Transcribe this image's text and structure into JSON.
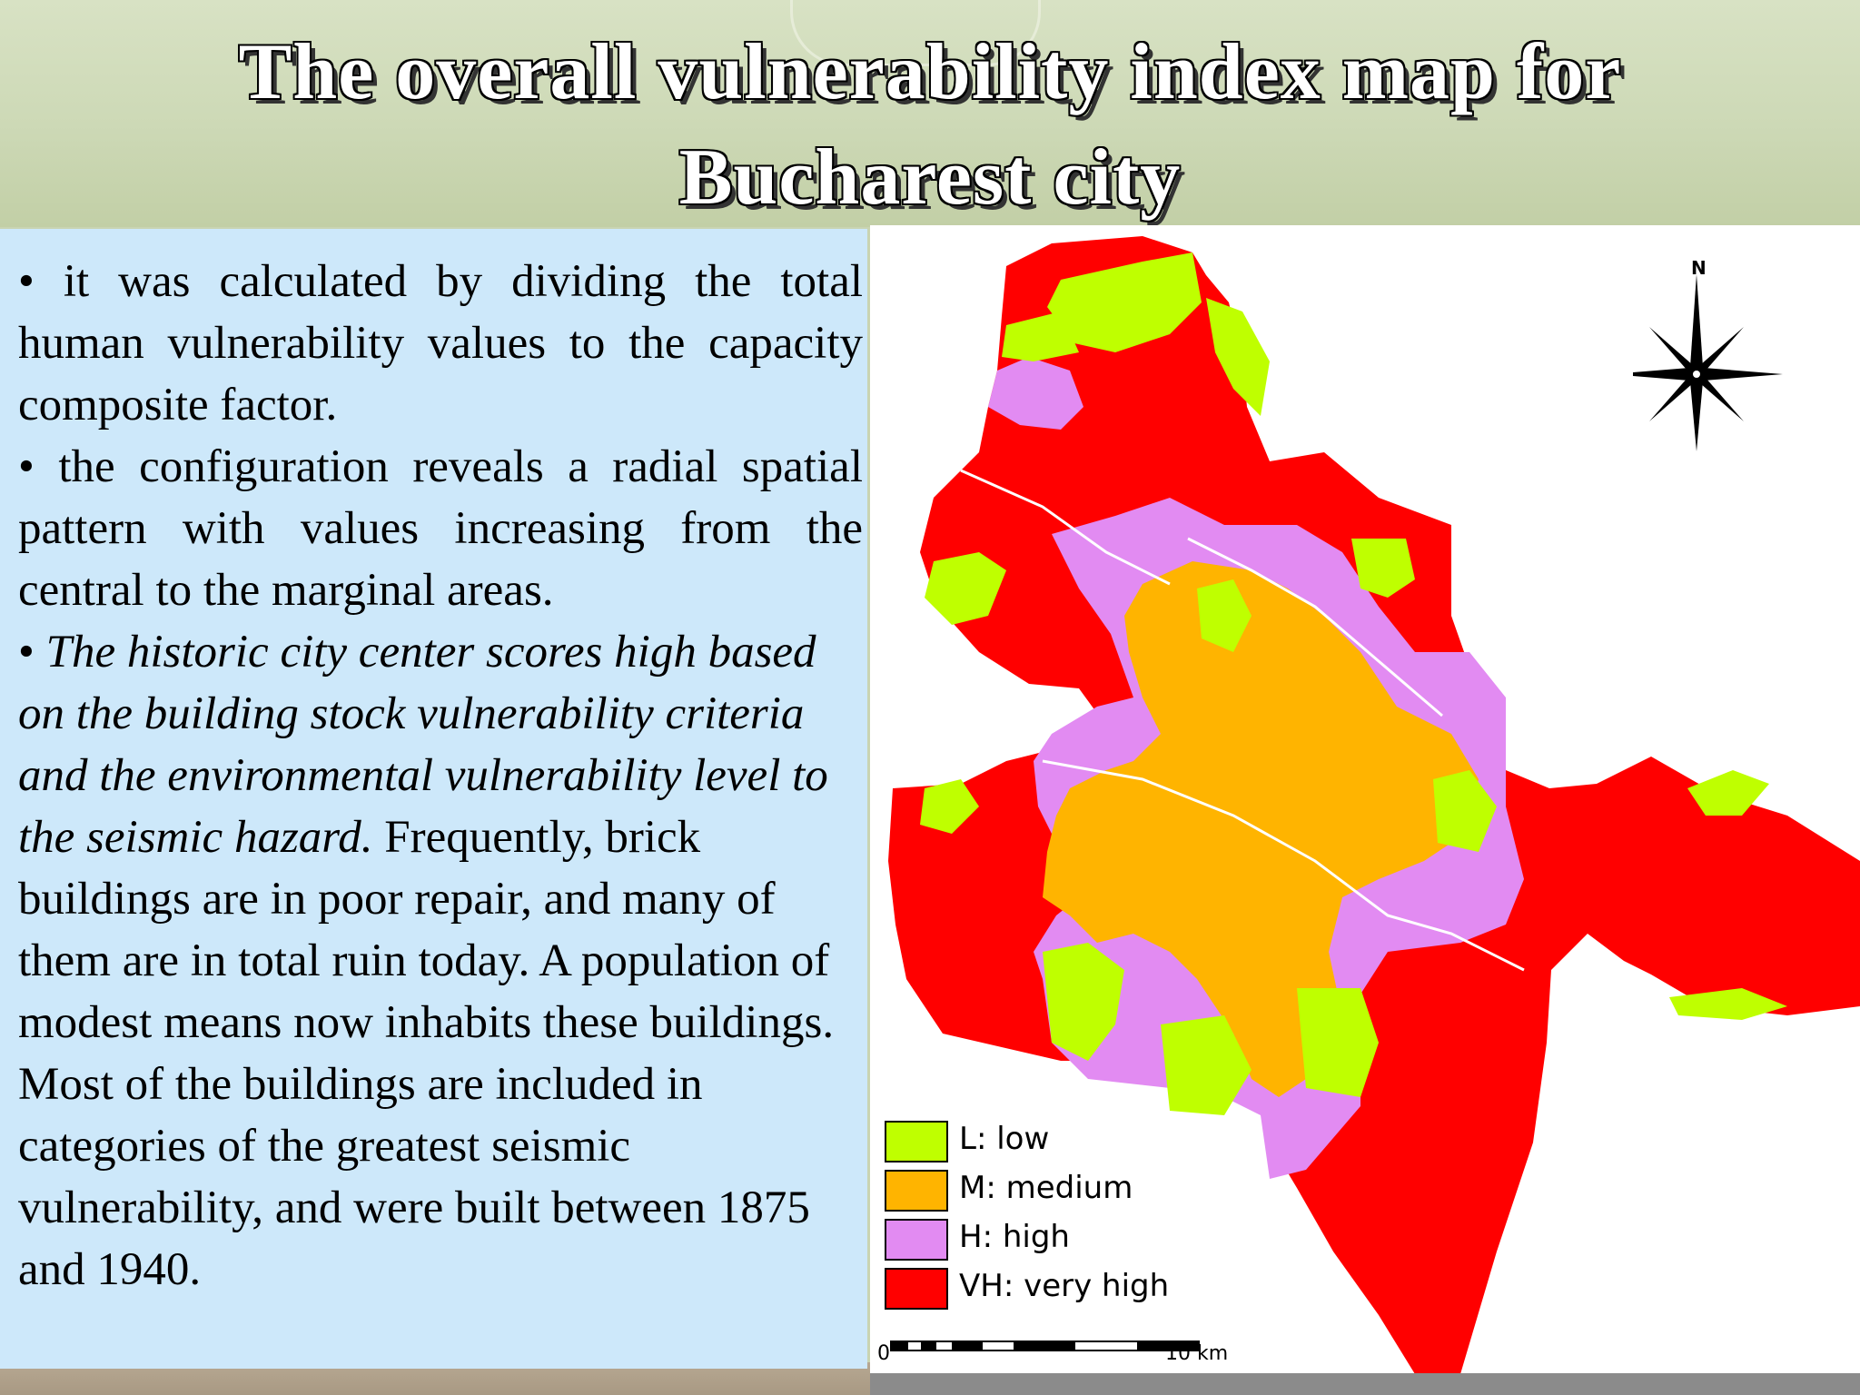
{
  "slide": {
    "title": "The overall vulnerability index map for Bucharest city"
  },
  "text": {
    "p1": "• it was calculated by dividing the total human vulnerability values to the capacity composite factor.",
    "p2": "• the configuration reveals a radial spatial pattern with values increasing from the central to the marginal areas.",
    "p3_bullet": "• ",
    "p3_italic": "The historic city center scores high based on the building stock vulnerability criteria and the environmental vulnerability level to the seismic hazard.",
    "p3_regular": " Frequently, brick buildings are in poor repair, and many of them are in total ruin today. A population of modest means now inhabits these buildings. Most of the buildings are included in categories of the greatest seismic vulnerability, and were built between 1875 and 1940."
  },
  "map": {
    "compass_label": "N",
    "legend": [
      {
        "label": "L: low",
        "color": "#bfff00"
      },
      {
        "label": "M: medium",
        "color": "#ffb400"
      },
      {
        "label": "H: high",
        "color": "#e28bf2"
      },
      {
        "label": "VH: very high",
        "color": "#ff0000"
      }
    ],
    "scale": {
      "start": "0",
      "end": "10 km"
    }
  }
}
